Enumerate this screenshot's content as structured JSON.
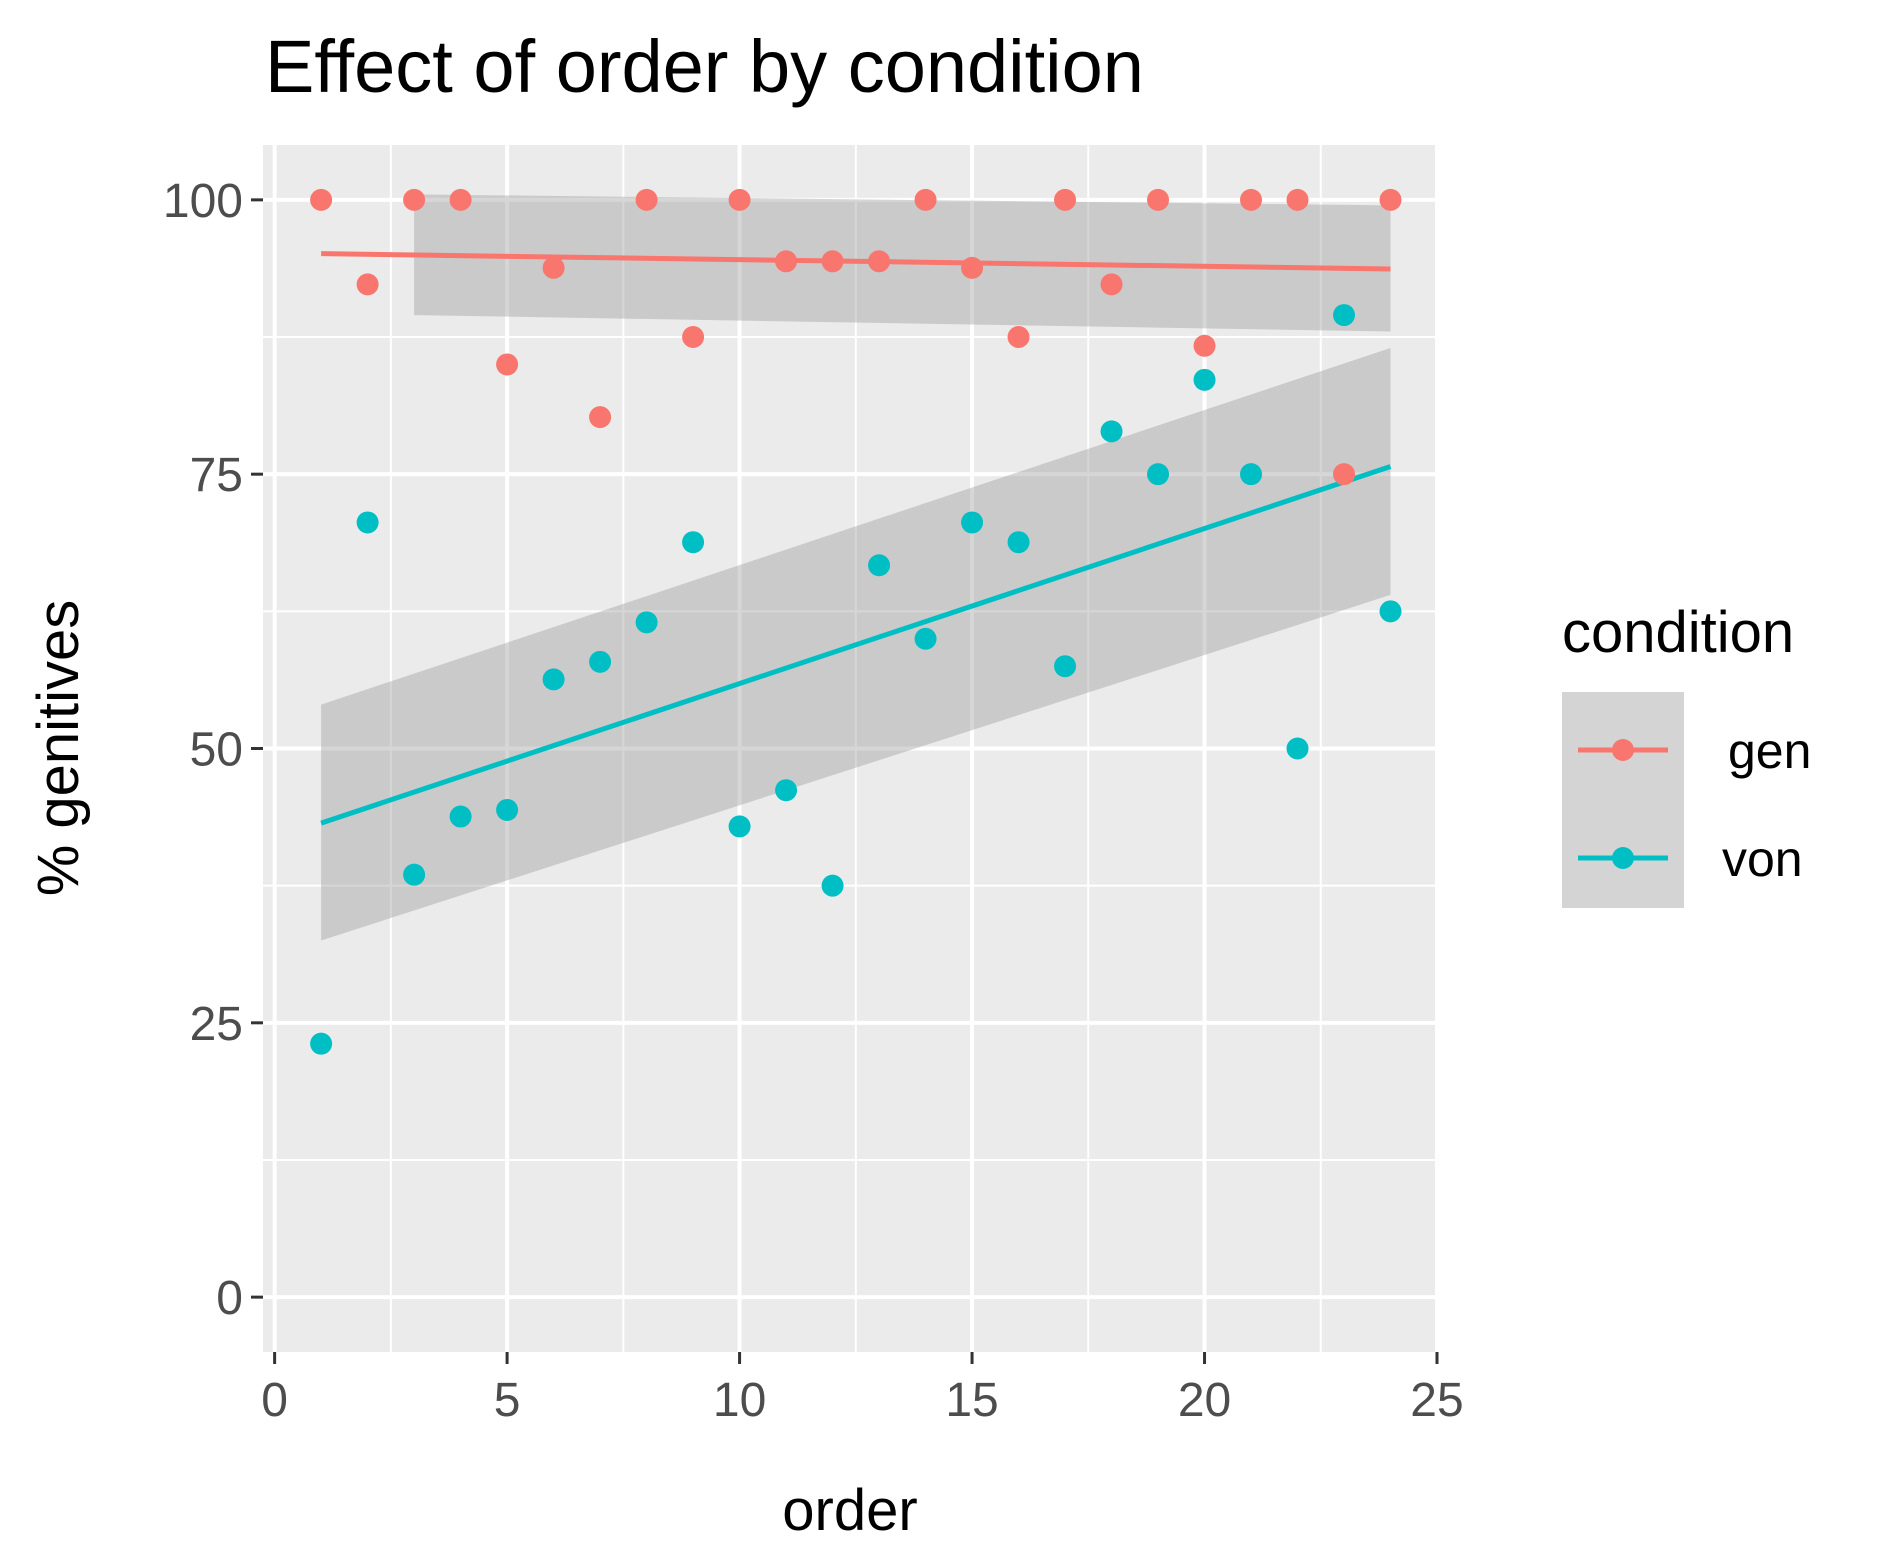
{
  "chart_data": {
    "type": "scatter",
    "title": "Effect of order by condition",
    "xlabel": "order",
    "ylabel": "% genitives",
    "xlim": [
      -0.25,
      25
    ],
    "ylim": [
      -5,
      105
    ],
    "x_ticks": [
      0,
      5,
      10,
      15,
      20,
      25
    ],
    "y_ticks": [
      0,
      25,
      50,
      75,
      100
    ],
    "x_tick_labels": [
      "0",
      "5",
      "10",
      "15",
      "20",
      "25"
    ],
    "y_tick_labels": [
      "0",
      "25",
      "50",
      "75",
      "100"
    ],
    "grid": true,
    "legend": {
      "title": "condition",
      "position": "right"
    },
    "series": [
      {
        "name": "gen",
        "color": "#F8766D",
        "x": [
          1,
          2,
          3,
          4,
          5,
          6,
          7,
          8,
          9,
          10,
          11,
          12,
          13,
          14,
          15,
          16,
          17,
          18,
          19,
          20,
          21,
          22,
          23,
          24
        ],
        "y": [
          100,
          92.3,
          100,
          100,
          85,
          93.8,
          80.2,
          100,
          87.5,
          100,
          94.4,
          94.4,
          94.4,
          100,
          93.8,
          87.5,
          100,
          92.3,
          100,
          86.7,
          100,
          100,
          75,
          100
        ],
        "fit": {
          "x": [
            1,
            24
          ],
          "y": [
            95.1,
            93.7
          ]
        },
        "ci": {
          "x": [
            3,
            24
          ],
          "lower": [
            89.5,
            88
          ],
          "upper": [
            100.5,
            99.5
          ]
        }
      },
      {
        "name": "von",
        "color": "#00BFC4",
        "x": [
          1,
          2,
          3,
          4,
          5,
          6,
          7,
          8,
          9,
          10,
          11,
          12,
          13,
          14,
          15,
          16,
          17,
          18,
          19,
          20,
          21,
          22,
          23,
          24
        ],
        "y": [
          23.1,
          70.6,
          38.5,
          43.8,
          44.4,
          56.3,
          57.9,
          61.5,
          68.8,
          42.9,
          46.2,
          37.5,
          66.7,
          60,
          70.6,
          68.8,
          57.5,
          78.9,
          75,
          83.6,
          75,
          50,
          89.5,
          62.5
        ],
        "fit": {
          "x": [
            1,
            24
          ],
          "y": [
            43.2,
            75.7
          ]
        },
        "ci": {
          "x": [
            1,
            24
          ],
          "lower": [
            32.5,
            64
          ],
          "upper": [
            54,
            86.5
          ]
        }
      }
    ]
  }
}
